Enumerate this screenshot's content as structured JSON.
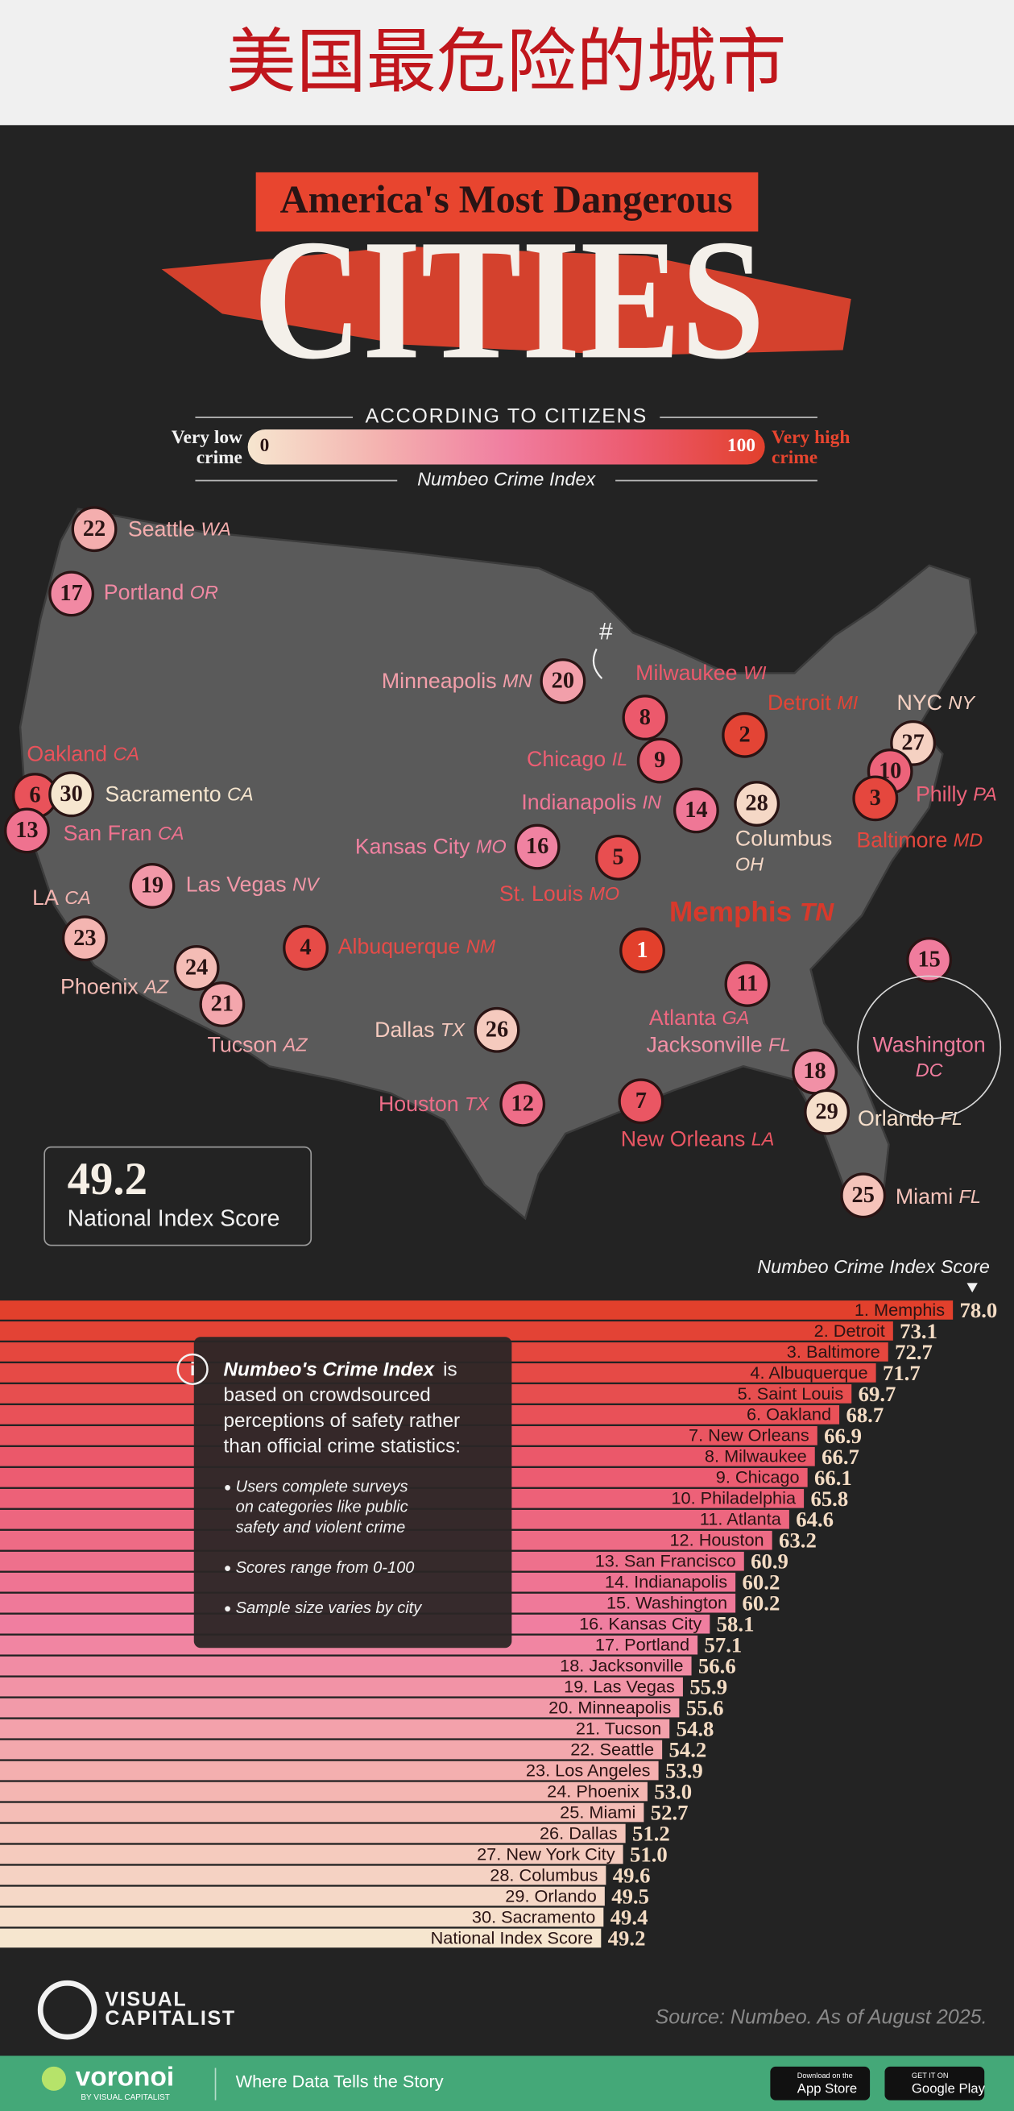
{
  "page_title": "美国最危险的城市",
  "header": {
    "kicker": "America's Most Dangerous",
    "title": "CITIES",
    "subtitle": "ACCORDING TO CITIZENS",
    "scale_low": [
      "Very low",
      "crime"
    ],
    "scale_high": [
      "Very high",
      "crime"
    ],
    "scale_min": 0,
    "scale_max": 100,
    "scale_label": "Numbeo Crime Index"
  },
  "map": {
    "annotation": "#",
    "markers": [
      {
        "rank": 22,
        "city": "Seattle",
        "state": "WA"
      },
      {
        "rank": 17,
        "city": "Portland",
        "state": "OR"
      },
      {
        "rank": 20,
        "city": "Minneapolis",
        "state": "MN"
      },
      {
        "rank": 8,
        "city": "Milwaukee",
        "state": "WI"
      },
      {
        "rank": 2,
        "city": "Detroit",
        "state": "MI"
      },
      {
        "rank": 27,
        "city": "NYC",
        "state": "NY"
      },
      {
        "rank": 9,
        "city": "Chicago",
        "state": "IL"
      },
      {
        "rank": 10,
        "city": "Philly",
        "state": "PA"
      },
      {
        "rank": 3,
        "city": "Baltimore",
        "state": "MD"
      },
      {
        "rank": 6,
        "city": "Oakland",
        "state": "CA"
      },
      {
        "rank": 30,
        "city": "Sacramento",
        "state": "CA"
      },
      {
        "rank": 13,
        "city": "San Fran",
        "state": "CA"
      },
      {
        "rank": 14,
        "city": "Indianapolis",
        "state": "IN"
      },
      {
        "rank": 28,
        "city": "Columbus",
        "state": "OH"
      },
      {
        "rank": 16,
        "city": "Kansas City",
        "state": "MO"
      },
      {
        "rank": 5,
        "city": "St. Louis",
        "state": "MO"
      },
      {
        "rank": 19,
        "city": "Las Vegas",
        "state": "NV"
      },
      {
        "rank": 23,
        "city": "LA",
        "state": "CA"
      },
      {
        "rank": 1,
        "city": "Memphis",
        "state": "TN"
      },
      {
        "rank": 4,
        "city": "Albuquerque",
        "state": "NM"
      },
      {
        "rank": 24,
        "city": "Phoenix",
        "state": "AZ"
      },
      {
        "rank": 21,
        "city": "Tucson",
        "state": "AZ"
      },
      {
        "rank": 11,
        "city": "Atlanta",
        "state": "GA"
      },
      {
        "rank": 15,
        "city": "Washington",
        "state": "DC"
      },
      {
        "rank": 26,
        "city": "Dallas",
        "state": "TX"
      },
      {
        "rank": 18,
        "city": "Jacksonville",
        "state": "FL"
      },
      {
        "rank": 12,
        "city": "Houston",
        "state": "TX"
      },
      {
        "rank": 7,
        "city": "New Orleans",
        "state": "LA"
      },
      {
        "rank": 29,
        "city": "Orlando",
        "state": "FL"
      },
      {
        "rank": 25,
        "city": "Miami",
        "state": "FL"
      }
    ]
  },
  "chart_data": {
    "type": "bar",
    "orientation": "horizontal",
    "title": "Numbeo Crime Index Score",
    "categories": [
      "1. Memphis",
      "2. Detroit",
      "3. Baltimore",
      "4. Albuquerque",
      "5. Saint Louis",
      "6. Oakland",
      "7. New Orleans",
      "8. Milwaukee",
      "9. Chicago",
      "10. Philadelphia",
      "11. Atlanta",
      "12. Houston",
      "13. San Francisco",
      "14. Indianapolis",
      "15. Washington",
      "16. Kansas City",
      "17. Portland",
      "18. Jacksonville",
      "19. Las Vegas",
      "20. Minneapolis",
      "21. Tucson",
      "22. Seattle",
      "23. Los Angeles",
      "24. Phoenix",
      "25. Miami",
      "26. Dallas",
      "27. New York City",
      "28. Columbus",
      "29. Orlando",
      "30. Sacramento",
      "National Index Score"
    ],
    "values": [
      78.0,
      73.1,
      72.7,
      71.7,
      69.7,
      68.7,
      66.9,
      66.7,
      66.1,
      65.8,
      64.6,
      63.2,
      60.9,
      60.2,
      60.2,
      58.1,
      57.1,
      56.6,
      55.9,
      55.6,
      54.8,
      54.2,
      53.9,
      53.0,
      52.7,
      51.2,
      51.0,
      49.6,
      49.5,
      49.4,
      49.2
    ],
    "value_labels": [
      "78.0",
      "73.1",
      "72.7",
      "71.7",
      "69.7",
      "68.7",
      "66.9",
      "66.7",
      "66.1",
      "65.8",
      "64.6",
      "63.2",
      "60.9",
      "60.2",
      "60.2",
      "58.1",
      "57.1",
      "56.6",
      "55.9",
      "55.6",
      "54.8",
      "54.2",
      "53.9",
      "53.0",
      "52.7",
      "51.2",
      "51.0",
      "49.6",
      "49.5",
      "49.4",
      "49.2"
    ],
    "xlim": [
      0,
      83
    ],
    "colors": [
      "#e2402c",
      "#ec5a6e",
      "#f07ea0",
      "#f4b3b0",
      "#f6e6cf"
    ]
  },
  "info": {
    "icon": "i",
    "intro_bold": "Numbeo's Crime Index",
    "intro_lines": [
      "is",
      "based on crowdsourced",
      "perceptions of safety rather",
      "than official crime statistics:"
    ],
    "bullets": [
      [
        "Users complete surveys",
        "on categories like public",
        "safety and violent crime"
      ],
      [
        "Scores range from 0-100"
      ],
      [
        "Sample size varies by city"
      ]
    ]
  },
  "footer": {
    "brand": [
      "VISUAL",
      "CAPITALIST"
    ],
    "source": "Source: Numbeo. As of August 2025.",
    "voronoi": "voronoi",
    "voronoi_sub": "BY VISUAL CAPITALIST",
    "tagline": "Where Data Tells the Story",
    "app_store": [
      "Download on the",
      "App Store"
    ],
    "google_play": [
      "GET IT ON",
      "Google Play"
    ]
  }
}
